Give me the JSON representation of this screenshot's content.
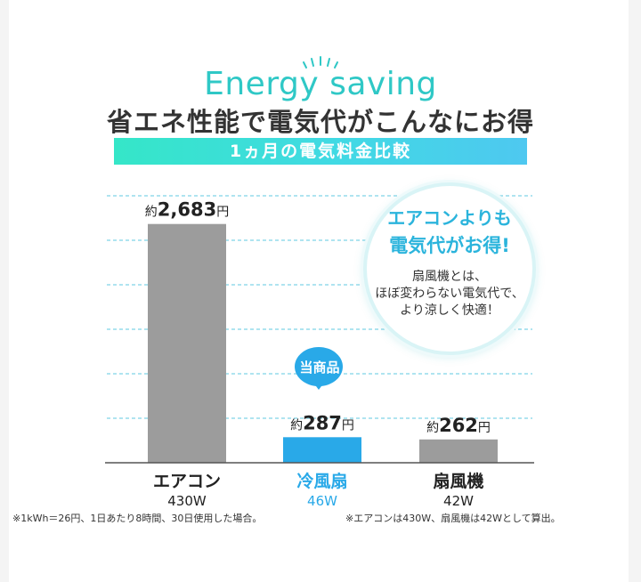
{
  "header": {
    "en_title": "Energy saving",
    "jp_title": "省エネ性能で電気代がこんなにお得",
    "subtitle": "1ヵ月の電気料金比較"
  },
  "callout": {
    "headline_1": "エアコンよりも",
    "headline_2": "電気代がお得!",
    "body_1": "扇風機とは、",
    "body_2": "ほぼ変わらない電気代で、",
    "body_3": "より涼しく快適！"
  },
  "badge": {
    "label": "当商品"
  },
  "footnotes": {
    "left": "※1kWh＝26円、1日あたり8時間、30日使用した場合。",
    "right": "※エアコンは430W、扇風機は42Wとして算出。"
  },
  "colors": {
    "accent_teal": "#2fc8c6",
    "highlight_blue": "#29a9e8",
    "bar_gray": "#9c9c9c",
    "text_dark": "#333333"
  },
  "icons": [
    "sparkle-icon"
  ],
  "chart_data": {
    "type": "bar",
    "title": "1ヵ月の電気料金比較",
    "categories": [
      "エアコン",
      "冷風扇",
      "扇風機"
    ],
    "wattage": [
      "430W",
      "46W",
      "42W"
    ],
    "values": [
      2683,
      287,
      262
    ],
    "value_labels": [
      {
        "prefix": "約",
        "number": "2,683",
        "unit": "円"
      },
      {
        "prefix": "約",
        "number": "287",
        "unit": "円"
      },
      {
        "prefix": "約",
        "number": "262",
        "unit": "円"
      }
    ],
    "bar_colors": [
      "#9c9c9c",
      "#29a9e8",
      "#9c9c9c"
    ],
    "highlight_index": 1,
    "ylim": [
      0,
      3000
    ],
    "grid": true,
    "grid_style": "dashed",
    "grid_color": "#7fd3e6",
    "xlabel": "",
    "ylabel": ""
  }
}
